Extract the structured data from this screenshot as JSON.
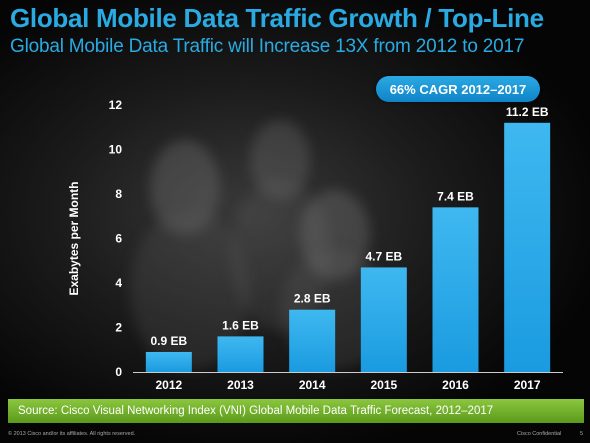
{
  "slide": {
    "title": "Global Mobile Data Traffic Growth / Top-Line",
    "subtitle": "Global Mobile Data Traffic will Increase 13X from 2012 to 2017",
    "badge": "66% CAGR 2012–2017",
    "source": "Source: Cisco Visual Networking Index (VNI) Global Mobile Data Traffic Forecast, 2012–2017",
    "copyright": "© 2013 Cisco and/or its affiliates. All rights reserved.",
    "confidential": "Cisco Confidential",
    "page_number": "5"
  },
  "colors": {
    "accent": "#29aae2",
    "bar": "#1a9be0",
    "source_bar": "#79b530"
  },
  "chart_data": {
    "type": "bar",
    "title": "",
    "xlabel": "",
    "ylabel": "Exabytes per Month",
    "categories": [
      "2012",
      "2013",
      "2014",
      "2015",
      "2016",
      "2017"
    ],
    "values": [
      0.9,
      1.6,
      2.8,
      4.7,
      7.4,
      11.2
    ],
    "data_labels": [
      "0.9 EB",
      "1.6 EB",
      "2.8 EB",
      "4.7 EB",
      "7.4 EB",
      "11.2 EB"
    ],
    "ylim": [
      0,
      12
    ],
    "yticks": [
      0,
      2,
      4,
      6,
      8,
      10,
      12
    ],
    "grid": false,
    "legend": "none"
  }
}
